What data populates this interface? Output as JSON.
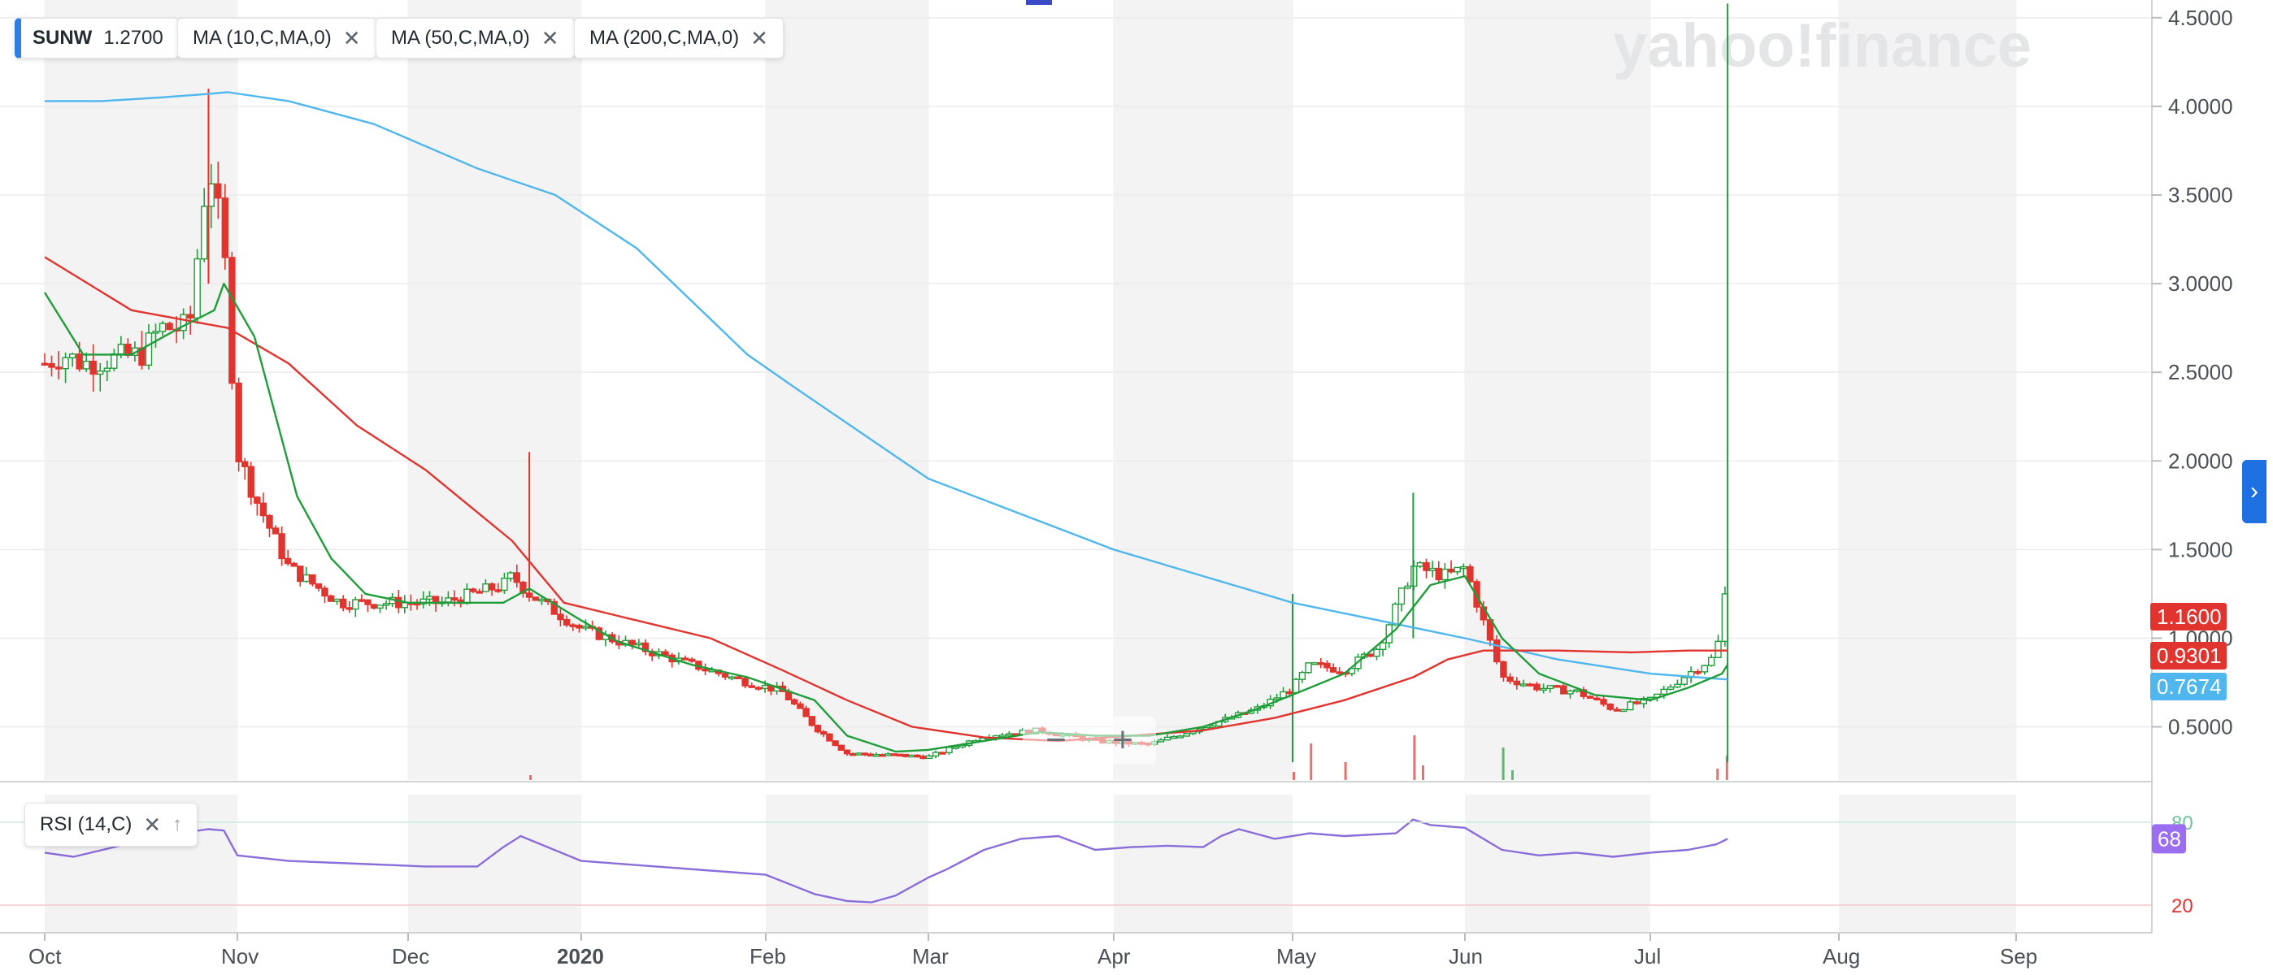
{
  "header": {
    "symbol": "SUNW",
    "last_price": "1.2700",
    "indicators": [
      {
        "label": "MA (10,C,MA,0)",
        "color": "#1f9d3a"
      },
      {
        "label": "MA (50,C,MA,0)",
        "color": "#e2342f"
      },
      {
        "label": "MA (200,C,MA,0)",
        "color": "#4fb7ee"
      }
    ],
    "rsi_label": "RSI (14,C)",
    "close_glyph": "✕",
    "up_glyph": "↑"
  },
  "watermark": "yahoo!finance",
  "zoom": {
    "minus": "−",
    "plus": "+"
  },
  "side_toggle": "›",
  "colors": {
    "up": "#1f9d3a",
    "down": "#e2342f",
    "ma10": "#1f9d3a",
    "ma50": "#e2342f",
    "ma200": "#4fb7ee",
    "rsi": "#8c6cd9",
    "band": "#f3f3f3",
    "grid": "#ebebeb"
  },
  "chart_data": {
    "type": "candlestick",
    "title": "",
    "x_axis": {
      "ticks": [
        "Oct",
        "Nov",
        "Dec",
        "2020",
        "Feb",
        "Mar",
        "Apr",
        "May",
        "Jun",
        "Jul",
        "Aug",
        "Sep"
      ],
      "bold_ticks": [
        "2020"
      ]
    },
    "price_axis": {
      "ticks": [
        "4.5000",
        "4.0000",
        "3.5000",
        "3.0000",
        "2.5000",
        "2.0000",
        "1.5000",
        "1.0000",
        "0.5000"
      ],
      "range": [
        0.2,
        4.6
      ]
    },
    "badges": [
      {
        "label": "1.1600",
        "value": 1.16,
        "color": "#e2342f"
      },
      {
        "label": "0.9301",
        "value": 0.9301,
        "color": "#e2342f"
      },
      {
        "label": "0.7674",
        "value": 0.7674,
        "color": "#4fb7ee"
      }
    ],
    "candle_anchors": [
      [
        0,
        2.55
      ],
      [
        0.1,
        2.6
      ],
      [
        0.2,
        2.55
      ],
      [
        0.5,
        2.6
      ],
      [
        0.6,
        2.75
      ],
      [
        0.75,
        2.75
      ],
      [
        0.85,
        3.7
      ],
      [
        0.93,
        3.2
      ],
      [
        1.0,
        2.05
      ],
      [
        1.1,
        1.8
      ],
      [
        1.3,
        1.4
      ],
      [
        1.6,
        1.2
      ],
      [
        1.9,
        1.2
      ],
      [
        2.2,
        1.2
      ],
      [
        2.55,
        1.3
      ],
      [
        2.6,
        1.35
      ],
      [
        2.7,
        1.25
      ],
      [
        3.0,
        1.05
      ],
      [
        3.3,
        0.95
      ],
      [
        3.6,
        0.85
      ],
      [
        3.9,
        0.75
      ],
      [
        4.1,
        0.7
      ],
      [
        4.3,
        0.5
      ],
      [
        4.5,
        0.35
      ],
      [
        4.8,
        0.34
      ],
      [
        5.0,
        0.33
      ],
      [
        5.3,
        0.45
      ],
      [
        5.6,
        0.48
      ],
      [
        5.9,
        0.42
      ],
      [
        6.2,
        0.4
      ],
      [
        6.5,
        0.5
      ],
      [
        6.8,
        0.6
      ],
      [
        7.0,
        0.72
      ],
      [
        7.1,
        0.85
      ],
      [
        7.3,
        0.82
      ],
      [
        7.5,
        0.95
      ],
      [
        7.7,
        1.4
      ],
      [
        7.9,
        1.35
      ],
      [
        8.0,
        1.4
      ],
      [
        8.2,
        0.78
      ],
      [
        8.4,
        0.72
      ],
      [
        8.6,
        0.7
      ],
      [
        8.8,
        0.6
      ],
      [
        9.0,
        0.65
      ],
      [
        9.2,
        0.8
      ],
      [
        9.35,
        0.9
      ],
      [
        9.4,
        1.27
      ]
    ],
    "ma10_anchors": [
      [
        0,
        2.95
      ],
      [
        0.2,
        2.6
      ],
      [
        0.45,
        2.6
      ],
      [
        0.7,
        2.75
      ],
      [
        0.88,
        2.85
      ],
      [
        0.93,
        3.0
      ],
      [
        1.1,
        2.7
      ],
      [
        1.35,
        1.8
      ],
      [
        1.55,
        1.45
      ],
      [
        1.75,
        1.25
      ],
      [
        2.0,
        1.2
      ],
      [
        2.3,
        1.2
      ],
      [
        2.55,
        1.2
      ],
      [
        2.7,
        1.28
      ],
      [
        3.0,
        1.1
      ],
      [
        3.2,
        0.98
      ],
      [
        3.6,
        0.85
      ],
      [
        3.9,
        0.78
      ],
      [
        4.3,
        0.65
      ],
      [
        4.5,
        0.45
      ],
      [
        4.8,
        0.36
      ],
      [
        5.0,
        0.37
      ],
      [
        5.3,
        0.42
      ],
      [
        5.6,
        0.47
      ],
      [
        5.9,
        0.45
      ],
      [
        6.2,
        0.45
      ],
      [
        6.5,
        0.5
      ],
      [
        6.8,
        0.6
      ],
      [
        7.1,
        0.72
      ],
      [
        7.3,
        0.8
      ],
      [
        7.6,
        1.05
      ],
      [
        7.8,
        1.3
      ],
      [
        8.0,
        1.35
      ],
      [
        8.2,
        1.0
      ],
      [
        8.4,
        0.8
      ],
      [
        8.7,
        0.68
      ],
      [
        9.0,
        0.65
      ],
      [
        9.2,
        0.72
      ],
      [
        9.38,
        0.8
      ],
      [
        9.41,
        0.85
      ]
    ],
    "ma50_anchors": [
      [
        0,
        3.15
      ],
      [
        0.45,
        2.85
      ],
      [
        0.7,
        2.8
      ],
      [
        0.95,
        2.75
      ],
      [
        1.3,
        2.55
      ],
      [
        1.7,
        2.2
      ],
      [
        2.1,
        1.95
      ],
      [
        2.6,
        1.55
      ],
      [
        2.9,
        1.2
      ],
      [
        3.3,
        1.1
      ],
      [
        3.7,
        1.0
      ],
      [
        4.1,
        0.82
      ],
      [
        4.5,
        0.65
      ],
      [
        4.9,
        0.5
      ],
      [
        5.3,
        0.44
      ],
      [
        5.7,
        0.42
      ],
      [
        6.1,
        0.45
      ],
      [
        6.5,
        0.48
      ],
      [
        6.9,
        0.55
      ],
      [
        7.3,
        0.65
      ],
      [
        7.7,
        0.78
      ],
      [
        7.9,
        0.88
      ],
      [
        8.1,
        0.93
      ],
      [
        8.5,
        0.93
      ],
      [
        8.9,
        0.92
      ],
      [
        9.2,
        0.93
      ],
      [
        9.41,
        0.93
      ]
    ],
    "ma200_anchors": [
      [
        0,
        4.03
      ],
      [
        0.3,
        4.03
      ],
      [
        0.6,
        4.05
      ],
      [
        0.85,
        4.07
      ],
      [
        0.95,
        4.08
      ],
      [
        1.3,
        4.03
      ],
      [
        1.8,
        3.9
      ],
      [
        2.4,
        3.65
      ],
      [
        2.85,
        3.5
      ],
      [
        3.3,
        3.2
      ],
      [
        3.6,
        2.9
      ],
      [
        3.9,
        2.6
      ],
      [
        4.2,
        2.4
      ],
      [
        4.6,
        2.15
      ],
      [
        5.0,
        1.9
      ],
      [
        5.5,
        1.7
      ],
      [
        6.0,
        1.5
      ],
      [
        6.5,
        1.35
      ],
      [
        7.0,
        1.2
      ],
      [
        7.5,
        1.1
      ],
      [
        8.0,
        1.0
      ],
      [
        8.5,
        0.88
      ],
      [
        9.0,
        0.8
      ],
      [
        9.41,
        0.767
      ]
    ],
    "rsi": {
      "label": "RSI (14,C)",
      "range": [
        0,
        100
      ],
      "levels": [
        {
          "label": "80",
          "value": 80
        },
        {
          "label": "20",
          "value": 20
        }
      ],
      "current": {
        "label": "68",
        "value": 68
      },
      "anchors": [
        [
          0,
          58
        ],
        [
          0.15,
          55
        ],
        [
          0.45,
          65
        ],
        [
          0.7,
          72
        ],
        [
          0.85,
          75
        ],
        [
          0.93,
          74
        ],
        [
          1.0,
          56
        ],
        [
          1.3,
          52
        ],
        [
          1.7,
          50
        ],
        [
          2.1,
          48
        ],
        [
          2.4,
          48
        ],
        [
          2.55,
          62
        ],
        [
          2.65,
          70
        ],
        [
          3.0,
          52
        ],
        [
          3.3,
          49
        ],
        [
          3.7,
          45
        ],
        [
          4.0,
          42
        ],
        [
          4.3,
          28
        ],
        [
          4.5,
          23
        ],
        [
          4.65,
          22
        ],
        [
          4.8,
          27
        ],
        [
          5.0,
          40
        ],
        [
          5.1,
          46
        ],
        [
          5.3,
          60
        ],
        [
          5.5,
          68
        ],
        [
          5.7,
          70
        ],
        [
          5.9,
          60
        ],
        [
          6.1,
          62
        ],
        [
          6.3,
          63
        ],
        [
          6.5,
          62
        ],
        [
          6.6,
          70
        ],
        [
          6.7,
          75
        ],
        [
          6.9,
          68
        ],
        [
          7.1,
          72
        ],
        [
          7.3,
          70
        ],
        [
          7.6,
          72
        ],
        [
          7.7,
          82
        ],
        [
          7.8,
          78
        ],
        [
          8.0,
          76
        ],
        [
          8.2,
          60
        ],
        [
          8.4,
          56
        ],
        [
          8.6,
          58
        ],
        [
          8.8,
          55
        ],
        [
          9.0,
          58
        ],
        [
          9.2,
          60
        ],
        [
          9.35,
          64
        ],
        [
          9.41,
          68
        ]
      ]
    }
  }
}
